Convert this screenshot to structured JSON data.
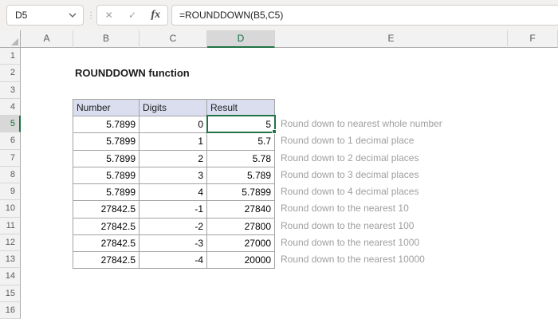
{
  "formula_bar": {
    "cell_reference": "D5",
    "formula": "=ROUNDDOWN(B5,C5)"
  },
  "icons": {
    "cancel": "✕",
    "enter": "✓",
    "function": "fx",
    "separator_dots": "⋮"
  },
  "sheet": {
    "title": "ROUNDDOWN function",
    "columns": [
      "A",
      "B",
      "C",
      "D",
      "E",
      "F"
    ],
    "selected_column": "D",
    "row_numbers": [
      1,
      2,
      3,
      4,
      5,
      6,
      7,
      8,
      9,
      10,
      11,
      12,
      13,
      14,
      15,
      16
    ],
    "selected_row": 5,
    "selected_cell": "D5"
  },
  "table": {
    "headers": [
      "Number",
      "Digits",
      "Result"
    ],
    "rows": [
      {
        "number": "5.7899",
        "digits": "0",
        "result": "5"
      },
      {
        "number": "5.7899",
        "digits": "1",
        "result": "5.7"
      },
      {
        "number": "5.7899",
        "digits": "2",
        "result": "5.78"
      },
      {
        "number": "5.7899",
        "digits": "3",
        "result": "5.789"
      },
      {
        "number": "5.7899",
        "digits": "4",
        "result": "5.7899"
      },
      {
        "number": "27842.5",
        "digits": "-1",
        "result": "27840"
      },
      {
        "number": "27842.5",
        "digits": "-2",
        "result": "27800"
      },
      {
        "number": "27842.5",
        "digits": "-3",
        "result": "27000"
      },
      {
        "number": "27842.5",
        "digits": "-4",
        "result": "20000"
      }
    ]
  },
  "notes": [
    "Round down to nearest whole number",
    "Round down to 1 decimal place",
    "Round down to 2 decimal places",
    "Round down to 3 decimal places",
    "Round down to 4 decimal places",
    "Round down to the nearest 10",
    "Round down to the nearest 100",
    "Round down to the nearest 1000",
    "Round down to the nearest 10000"
  ],
  "colors": {
    "accent_green": "#217346",
    "selected_header_text": "#0E703E",
    "selected_header_fill": "#D8D8D8",
    "table_header_fill": "#DBDEEF",
    "table_border": "#A3A3A3",
    "note_text": "#9E9E9E"
  }
}
